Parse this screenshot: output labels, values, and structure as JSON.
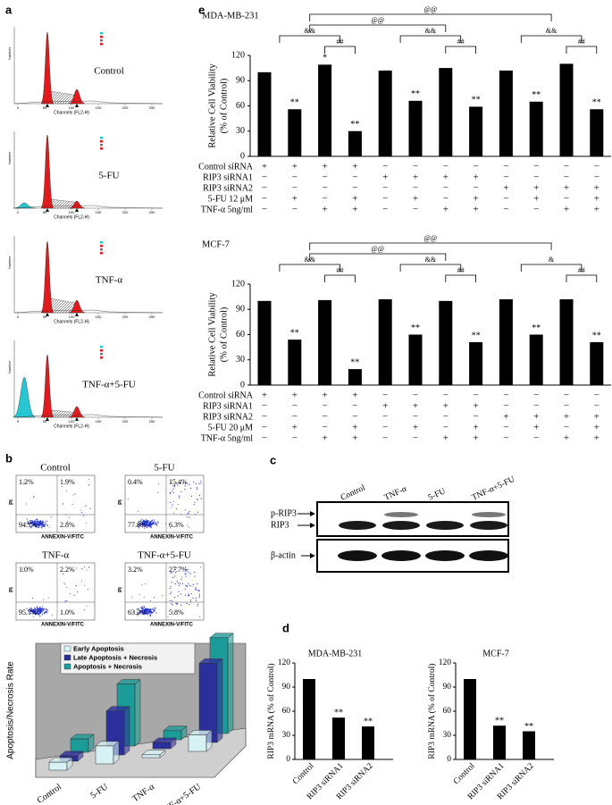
{
  "panel_labels": [
    "a",
    "b",
    "c",
    "d",
    "e"
  ],
  "cell_cycle": {
    "x_label": "Channels (FL2-H)",
    "y_label": "Number",
    "xlim": [
      0,
      250
    ],
    "xticks": [
      0,
      50,
      100,
      150,
      200,
      250
    ],
    "plots": [
      "Control",
      "5-FU",
      "TNF-α",
      "TNF-α+5-FU"
    ]
  },
  "flow_cytometry": {
    "x_label": "ANNEXIN-V/FITC",
    "y_label": "PI",
    "plots": [
      {
        "title": "Control",
        "quadrants": [
          "1.2%",
          "1.9%",
          "94.1%",
          "2.8%"
        ]
      },
      {
        "title": "5-FU",
        "quadrants": [
          "0.4%",
          "15.4%",
          "77.8%",
          "6.3%"
        ]
      },
      {
        "title": "TNF-α",
        "quadrants": [
          "1.0%",
          "2.2%",
          "95.7%",
          "1.0%"
        ]
      },
      {
        "title": "TNF-α+5-FU",
        "quadrants": [
          "3.2%",
          "27.7%",
          "63.2%",
          "5.8%"
        ]
      }
    ]
  },
  "western_blot": {
    "lanes": [
      "Control",
      "TNF-α",
      "5-FU",
      "TNF-α+5-FU"
    ],
    "bands": [
      "p-RIP3",
      "RIP3",
      "β-actin"
    ]
  },
  "chart_data": [
    {
      "type": "bar3d",
      "y_label": "Apoptosis/Necrosis Rate",
      "categories": [
        "Control",
        "5-FU",
        "TNF-α",
        "TNF-α+5-FU"
      ],
      "series": [
        {
          "name": "Early Apoptosis",
          "color": "#d6f2f4",
          "values": [
            2.8,
            6.3,
            1.0,
            5.8
          ]
        },
        {
          "name": "Late Apoptosis + Necrosis",
          "color": "#2b2f9c",
          "values": [
            1.9,
            15.4,
            2.2,
            27.7
          ]
        },
        {
          "name": "Apoptosis + Necrosis",
          "color": "#1c9c98",
          "values": [
            4.7,
            21.7,
            3.2,
            33.5
          ]
        }
      ]
    },
    {
      "type": "bar",
      "title": "MDA-MB-231",
      "y_label": "RIP3 mRNA (% of Control)",
      "categories": [
        "Control",
        "RIP3 siRNA1",
        "RIP3 siRNA2"
      ],
      "values": [
        100,
        52,
        41
      ],
      "significance": [
        null,
        "**",
        "**"
      ],
      "color": "#000000",
      "ylim": [
        0,
        120
      ],
      "yticks": [
        0,
        30,
        60,
        90,
        120
      ]
    },
    {
      "type": "bar",
      "title": "MCF-7",
      "y_label": "RIP3 mRNA (% of Control)",
      "categories": [
        "Control",
        "RIP3 siRNA1",
        "RIP3 siRNA2"
      ],
      "values": [
        100,
        42,
        35
      ],
      "significance": [
        null,
        "**",
        "**"
      ],
      "color": "#000000",
      "ylim": [
        0,
        120
      ],
      "yticks": [
        0,
        30,
        60,
        90,
        120
      ]
    },
    {
      "type": "bar",
      "title": "MDA-MB-231",
      "y_label": [
        "Relative Cell Viability",
        "(% of Control)"
      ],
      "values": [
        100,
        56,
        109,
        30,
        102,
        66,
        105,
        59,
        102,
        65,
        110,
        56
      ],
      "significance": [
        null,
        "**",
        "*",
        "**",
        null,
        "**",
        null,
        "**",
        null,
        "**",
        null,
        "**"
      ],
      "brackets": [
        "&&",
        "##",
        "&&",
        "##",
        "&&",
        "##",
        "@@",
        "@@"
      ],
      "conditions": [
        {
          "label": "Control siRNA",
          "marks": [
            "+",
            "+",
            "+",
            "+",
            "−",
            "−",
            "−",
            "−",
            "−",
            "−",
            "−",
            "−"
          ]
        },
        {
          "label": "RIP3 siRNA1",
          "marks": [
            "−",
            "−",
            "−",
            "−",
            "+",
            "+",
            "+",
            "+",
            "−",
            "−",
            "−",
            "−"
          ]
        },
        {
          "label": "RIP3 siRNA2",
          "marks": [
            "−",
            "−",
            "−",
            "−",
            "−",
            "−",
            "−",
            "−",
            "+",
            "+",
            "+",
            "+"
          ]
        },
        {
          "label": "5-FU 12 μM",
          "marks": [
            "−",
            "+",
            "−",
            "+",
            "−",
            "+",
            "−",
            "+",
            "−",
            "+",
            "−",
            "+"
          ]
        },
        {
          "label": "TNF-α 5ng/ml",
          "marks": [
            "−",
            "−",
            "+",
            "+",
            "−",
            "−",
            "+",
            "+",
            "−",
            "−",
            "+",
            "+"
          ]
        }
      ],
      "color": "#000000",
      "ylim": [
        0,
        120
      ],
      "yticks": [
        0,
        30,
        60,
        90,
        120
      ]
    },
    {
      "type": "bar",
      "title": "MCF-7",
      "y_label": [
        "Relative Cell Viability",
        "(% of Control)"
      ],
      "values": [
        100,
        54,
        101,
        19,
        102,
        60,
        100,
        51,
        102,
        60,
        102,
        51
      ],
      "significance": [
        null,
        "**",
        null,
        "**",
        null,
        "**",
        null,
        "**",
        null,
        "**",
        null,
        "**"
      ],
      "brackets": [
        "&&",
        "##",
        "&&",
        "##",
        "&",
        "##",
        "@@",
        "@@"
      ],
      "conditions": [
        {
          "label": "Control siRNA",
          "marks": [
            "+",
            "+",
            "+",
            "+",
            "−",
            "−",
            "−",
            "−",
            "−",
            "−",
            "−",
            "−"
          ]
        },
        {
          "label": "RIP3 siRNA1",
          "marks": [
            "−",
            "−",
            "−",
            "−",
            "+",
            "+",
            "+",
            "+",
            "−",
            "−",
            "−",
            "−"
          ]
        },
        {
          "label": "RIP3 siRNA2",
          "marks": [
            "−",
            "−",
            "−",
            "−",
            "−",
            "−",
            "−",
            "−",
            "+",
            "+",
            "+",
            "+"
          ]
        },
        {
          "label": "5-FU 20 μM",
          "marks": [
            "−",
            "+",
            "−",
            "+",
            "−",
            "+",
            "−",
            "+",
            "−",
            "+",
            "−",
            "+"
          ]
        },
        {
          "label": "TNF-α 5ng/ml",
          "marks": [
            "−",
            "−",
            "+",
            "+",
            "−",
            "−",
            "+",
            "+",
            "−",
            "−",
            "+",
            "+"
          ]
        }
      ],
      "color": "#000000",
      "ylim": [
        0,
        120
      ],
      "yticks": [
        0,
        30,
        60,
        90,
        120
      ]
    }
  ]
}
